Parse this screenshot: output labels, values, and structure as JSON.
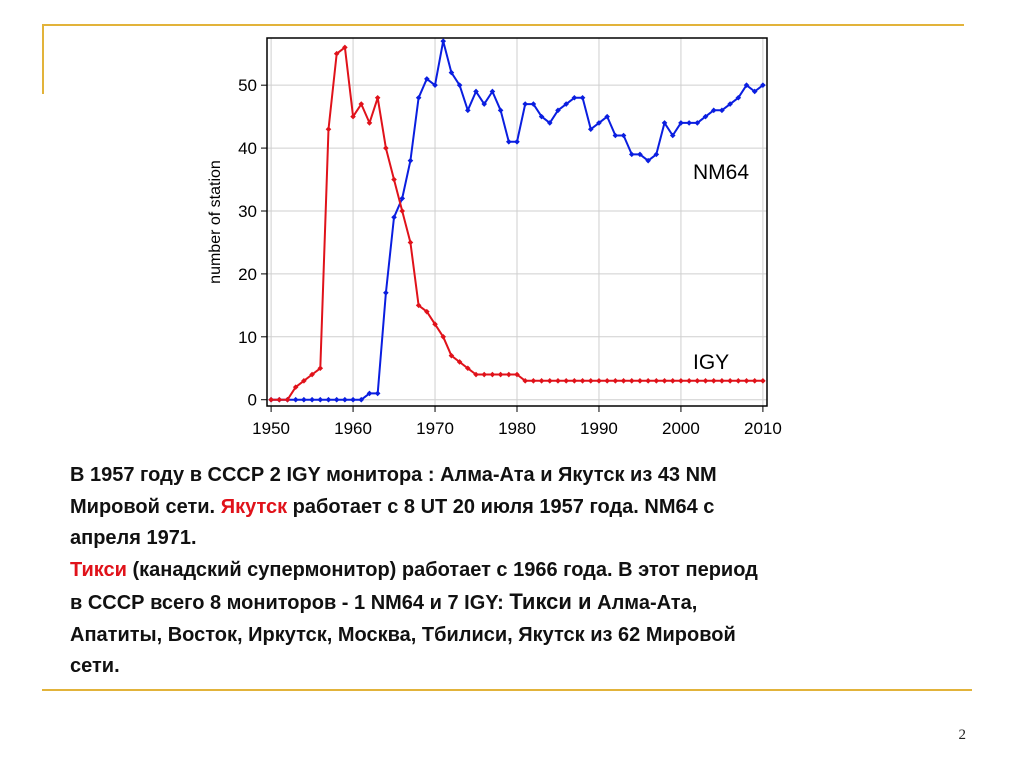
{
  "slide": {
    "page_number": "2",
    "caption": {
      "line1": "В 1957 году в СССР 2 IGY монитора : Алма-Ата и Якутск из 43 NM",
      "line2_a": "Мировой сети. ",
      "line2_red": "Якутск",
      "line2_b": " работает  с 8 UT 20 июля 1957 года. NM64 с",
      "line3": "апреля 1971.",
      "line4_red": "Тикси",
      "line4_b": "  (канадский супермонитор) работает с 1966 года. В этот период",
      "line5_a": "в СССР всего 8 мониторов - 1 NM64 и 7 IGY: ",
      "line5_big": "Тикси и",
      "line5_b": " Алма-Ата,",
      "line6": "Апатиты, Восток, Иркутск, Москва, Тбилиси, Якутск из 62 Мировой",
      "line7": "сети."
    }
  },
  "colors": {
    "accent": "#e2b33a",
    "nm64": "#0a1ee0",
    "igy": "#e0121a",
    "highlight_text": "#e0121a"
  },
  "chart_data": {
    "type": "line",
    "title": "",
    "xlabel": "",
    "ylabel": "number of station",
    "xlim": [
      1949.5,
      2010.5
    ],
    "ylim": [
      -1,
      57.5
    ],
    "xticks": [
      1950,
      1960,
      1970,
      1980,
      1990,
      2000,
      2010
    ],
    "yticks": [
      0,
      10,
      20,
      30,
      40,
      50
    ],
    "grid": true,
    "series": [
      {
        "name": "NM64",
        "color": "#0a1ee0",
        "x": [
          1950,
          1951,
          1952,
          1953,
          1954,
          1955,
          1956,
          1957,
          1958,
          1959,
          1960,
          1961,
          1962,
          1963,
          1964,
          1965,
          1966,
          1967,
          1968,
          1969,
          1970,
          1971,
          1972,
          1973,
          1974,
          1975,
          1976,
          1977,
          1978,
          1979,
          1980,
          1981,
          1982,
          1983,
          1984,
          1985,
          1986,
          1987,
          1988,
          1989,
          1990,
          1991,
          1992,
          1993,
          1994,
          1995,
          1996,
          1997,
          1998,
          1999,
          2000,
          2001,
          2002,
          2003,
          2004,
          2005,
          2006,
          2007,
          2008,
          2009,
          2010
        ],
        "y": [
          0,
          0,
          0,
          0,
          0,
          0,
          0,
          0,
          0,
          0,
          0,
          0,
          1,
          1,
          17,
          29,
          32,
          38,
          48,
          51,
          50,
          57,
          52,
          50,
          46,
          49,
          47,
          49,
          46,
          41,
          41,
          47,
          47,
          45,
          44,
          46,
          47,
          48,
          48,
          43,
          44,
          45,
          42,
          42,
          39,
          39,
          38,
          39,
          44,
          42,
          44,
          44,
          44,
          45,
          46,
          46,
          47,
          48,
          50,
          49,
          50
        ]
      },
      {
        "name": "IGY",
        "color": "#e0121a",
        "x": [
          1950,
          1951,
          1952,
          1953,
          1954,
          1955,
          1956,
          1957,
          1958,
          1959,
          1960,
          1961,
          1962,
          1963,
          1964,
          1965,
          1966,
          1967,
          1968,
          1969,
          1970,
          1971,
          1972,
          1973,
          1974,
          1975,
          1976,
          1977,
          1978,
          1979,
          1980,
          1981,
          1982,
          1983,
          1984,
          1985,
          1986,
          1987,
          1988,
          1989,
          1990,
          1991,
          1992,
          1993,
          1994,
          1995,
          1996,
          1997,
          1998,
          1999,
          2000,
          2001,
          2002,
          2003,
          2004,
          2005,
          2006,
          2007,
          2008,
          2009,
          2010
        ],
        "y": [
          0,
          0,
          0,
          2,
          3,
          4,
          5,
          43,
          55,
          56,
          45,
          47,
          44,
          48,
          40,
          35,
          30,
          25,
          15,
          14,
          12,
          10,
          7,
          6,
          5,
          4,
          4,
          4,
          4,
          4,
          4,
          3,
          3,
          3,
          3,
          3,
          3,
          3,
          3,
          3,
          3,
          3,
          3,
          3,
          3,
          3,
          3,
          3,
          3,
          3,
          3,
          3,
          3,
          3,
          3,
          3,
          3,
          3,
          3,
          3,
          3
        ]
      }
    ],
    "annotations": [
      {
        "text": "NM64",
        "series": "NM64"
      },
      {
        "text": "IGY",
        "series": "IGY"
      }
    ]
  }
}
